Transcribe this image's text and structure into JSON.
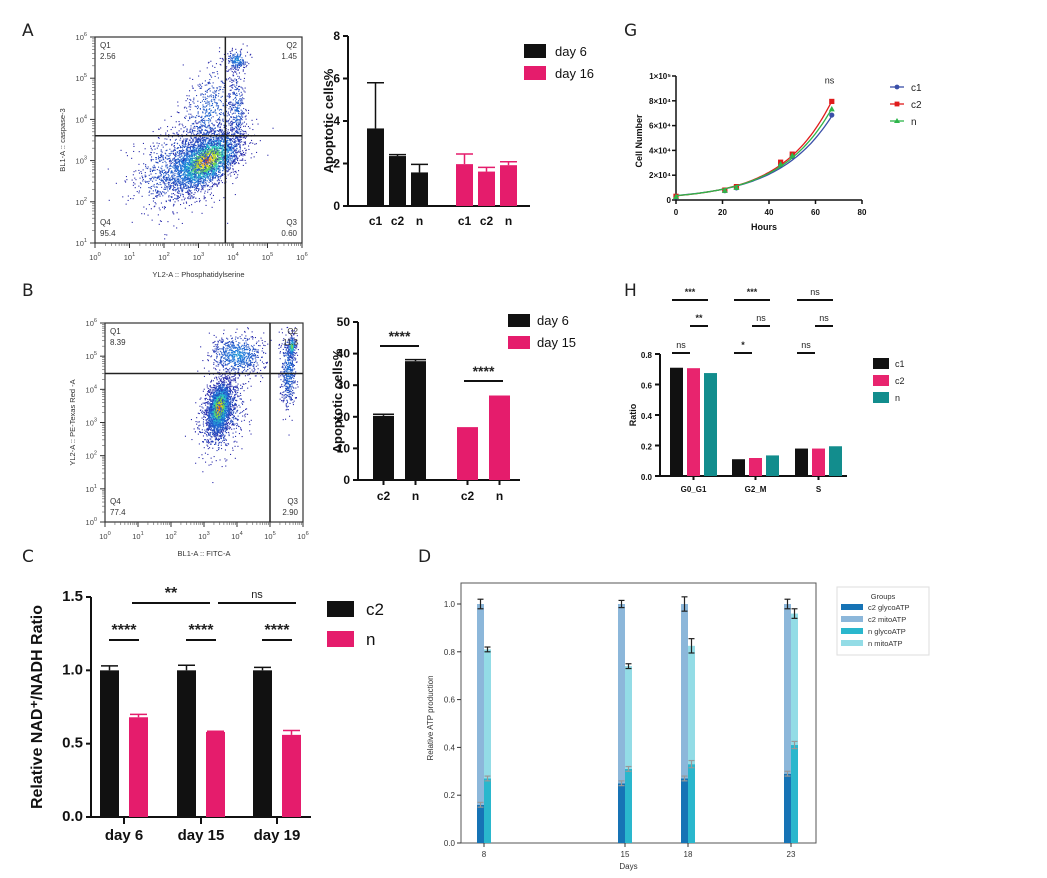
{
  "panel_labels": {
    "A": "A",
    "B": "B",
    "C": "C",
    "D": "D",
    "G": "G",
    "H": "H"
  },
  "chart_data": [
    {
      "id": "A-flow",
      "type": "scatter",
      "subtype": "flow-cytometry-density",
      "xlabel": "YL2-A :: Phosphatidylserine",
      "ylabel": "BL1-A :: caspase-3",
      "xscale": "log",
      "yscale": "log",
      "xlim": [
        1,
        1000000
      ],
      "ylim": [
        10,
        1000000
      ],
      "xticks": [
        "10^0",
        "10^1",
        "10^2",
        "10^3",
        "10^4",
        "10^5",
        "10^6"
      ],
      "yticks": [
        "10^1",
        "10^2",
        "10^3",
        "10^4",
        "10^5",
        "10^6"
      ],
      "gate": {
        "x": 6000,
        "y": 4000
      },
      "quadrants": [
        {
          "name": "Q1",
          "value": "2.56"
        },
        {
          "name": "Q2",
          "value": "1.45"
        },
        {
          "name": "Q3",
          "value": "0.60"
        },
        {
          "name": "Q4",
          "value": "95.4"
        }
      ]
    },
    {
      "id": "A-bar",
      "type": "bar",
      "ylabel": "Apoptotic cells%",
      "ylim": [
        0,
        8
      ],
      "yticks": [
        0,
        2,
        4,
        6,
        8
      ],
      "groups": [
        {
          "name": "day 6",
          "color": "#111111",
          "categories": [
            "c1",
            "c2",
            "n"
          ],
          "values": [
            3.65,
            2.35,
            1.58
          ],
          "errors": [
            2.15,
            0.07,
            0.38
          ]
        },
        {
          "name": "day 16",
          "color": "#e51c6c",
          "categories": [
            "c1",
            "c2",
            "n"
          ],
          "values": [
            1.97,
            1.62,
            1.92
          ],
          "errors": [
            0.48,
            0.2,
            0.16
          ]
        }
      ],
      "legend": [
        "day 6",
        "day 16"
      ]
    },
    {
      "id": "G",
      "type": "line",
      "xlabel": "Hours",
      "ylabel": "Cell Number",
      "xlim": [
        0,
        80
      ],
      "ylim": [
        0,
        100000
      ],
      "xticks": [
        0,
        20,
        40,
        60,
        80
      ],
      "yticks": [
        "0",
        "2×10⁴",
        "4×10⁴",
        "6×10⁴",
        "8×10⁴",
        "1×10⁵"
      ],
      "ytick_values": [
        0,
        20000,
        40000,
        60000,
        80000,
        100000
      ],
      "annotation": "ns",
      "series": [
        {
          "name": "c1",
          "color": "#3a4fa8",
          "marker": "circle",
          "x": [
            0,
            21,
            26,
            45,
            50,
            67
          ],
          "y": [
            2500,
            7500,
            9800,
            28000,
            35000,
            68500
          ]
        },
        {
          "name": "c2",
          "color": "#e01b1b",
          "marker": "square",
          "x": [
            0,
            21,
            26,
            45,
            50,
            67
          ],
          "y": [
            3000,
            8000,
            10800,
            30500,
            37000,
            79500
          ]
        },
        {
          "name": "n",
          "color": "#2eb54a",
          "marker": "triangle",
          "x": [
            0,
            21,
            26,
            45,
            50,
            67
          ],
          "y": [
            2800,
            7800,
            10200,
            29000,
            36000,
            73500
          ]
        }
      ],
      "fit": {
        "c1": [
          3600,
          0.0438
        ],
        "c2": [
          3400,
          0.0471
        ],
        "n": [
          3500,
          0.0455
        ]
      }
    },
    {
      "id": "B-flow",
      "type": "scatter",
      "subtype": "flow-cytometry-density",
      "xlabel": "BL1-A :: FITC-A",
      "ylabel": "YL2-A :: PE-Texas Red -A",
      "xscale": "log",
      "yscale": "log",
      "xlim": [
        1,
        1000000
      ],
      "ylim": [
        1,
        1000000
      ],
      "xticks": [
        "10^0",
        "10^1",
        "10^2",
        "10^3",
        "10^4",
        "10^5",
        "10^6"
      ],
      "yticks": [
        "10^0",
        "10^1",
        "10^2",
        "10^3",
        "10^4",
        "10^5",
        "10^6"
      ],
      "gate": {
        "x": 100000,
        "y": 30000
      },
      "quadrants": [
        {
          "name": "Q1",
          "value": "8.39"
        },
        {
          "name": "Q2",
          "value": "11.3"
        },
        {
          "name": "Q3",
          "value": "2.90"
        },
        {
          "name": "Q4",
          "value": "77.4"
        }
      ]
    },
    {
      "id": "B-bar",
      "type": "bar",
      "ylabel": "Apoptotic cells%",
      "ylim": [
        0,
        50
      ],
      "yticks": [
        0,
        10,
        20,
        30,
        40,
        50
      ],
      "groups": [
        {
          "name": "day 6",
          "color": "#111111",
          "categories": [
            "c2",
            "n"
          ],
          "values": [
            20.3,
            37.6
          ],
          "errors": [
            0.5,
            0.5
          ]
        },
        {
          "name": "day 15",
          "color": "#e51c6c",
          "categories": [
            "c2",
            "n"
          ],
          "values": [
            16.4,
            26.4
          ],
          "errors": [
            0.1,
            0.1
          ]
        }
      ],
      "significance": [
        "****",
        "****"
      ],
      "legend": [
        "day 6",
        "day 15"
      ]
    },
    {
      "id": "H",
      "type": "bar",
      "ylabel": "Ratio",
      "ylim": [
        0,
        0.8
      ],
      "yticks": [
        "0.0",
        "0.2",
        "0.4",
        "0.6",
        "0.8"
      ],
      "categories": [
        "G0_G1",
        "G2_M",
        "S"
      ],
      "series": [
        {
          "name": "c1",
          "color": "#111111",
          "values": [
            0.71,
            0.11,
            0.18
          ]
        },
        {
          "name": "c2",
          "color": "#e8246e",
          "values": [
            0.707,
            0.118,
            0.18
          ]
        },
        {
          "name": "n",
          "color": "#128d8d",
          "values": [
            0.675,
            0.135,
            0.195
          ]
        }
      ],
      "significance": {
        "G0_G1": [
          "***",
          "**",
          "ns"
        ],
        "G2_M": [
          "***",
          "ns",
          "*"
        ],
        "S": [
          "ns",
          "ns",
          "ns"
        ]
      },
      "legend": [
        "c1",
        "c2",
        "n"
      ]
    },
    {
      "id": "C",
      "type": "bar",
      "ylabel": "Relative NAD⁺/NADH Ratio",
      "ylim": [
        0,
        1.5
      ],
      "yticks": [
        "0.0",
        "0.5",
        "1.0",
        "1.5"
      ],
      "categories": [
        "day 6",
        "day 15",
        "day 19"
      ],
      "series": [
        {
          "name": "c2",
          "color": "#111111",
          "values": [
            1.0,
            1.0,
            1.0
          ],
          "errors": [
            0.03,
            0.035,
            0.02
          ]
        },
        {
          "name": "n",
          "color": "#e51c6c",
          "values": [
            0.68,
            0.58,
            0.56
          ],
          "errors": [
            0.02,
            0.005,
            0.03
          ]
        }
      ],
      "significance": {
        "within": [
          "****",
          "****",
          "****"
        ],
        "between": [
          "**",
          "ns"
        ]
      },
      "legend": [
        "c2",
        "n"
      ]
    },
    {
      "id": "D",
      "type": "bar",
      "subtype": "stacked",
      "xlabel": "Days",
      "ylabel": "Relative ATP production",
      "ylim": [
        0,
        1.08
      ],
      "yticks": [
        "0.0",
        "0.2",
        "0.4",
        "0.6",
        "0.8",
        "1.0"
      ],
      "categories": [
        "8",
        "15",
        "18",
        "23"
      ],
      "x": [
        8,
        15,
        18,
        23
      ],
      "legend_title": "Groups",
      "series": [
        {
          "name": "c2 glycoATP",
          "color": "#1673b5",
          "values": [
            0.16,
            0.25,
            0.27,
            0.29
          ],
          "errors": [
            0.01,
            0.01,
            0.01,
            0.01
          ]
        },
        {
          "name": "c2 mitoATP",
          "color": "#8cb7da",
          "values": [
            0.84,
            0.75,
            0.73,
            0.71
          ],
          "errors": [
            0.02,
            0.015,
            0.03,
            0.02
          ]
        },
        {
          "name": "n glycoATP",
          "color": "#2ab7cd",
          "values": [
            0.27,
            0.31,
            0.33,
            0.41
          ],
          "errors": [
            0.01,
            0.01,
            0.015,
            0.015
          ]
        },
        {
          "name": "n mitoATP",
          "color": "#93dce6",
          "values": [
            0.54,
            0.43,
            0.495,
            0.55
          ],
          "errors": [
            0.01,
            0.01,
            0.03,
            0.02
          ]
        }
      ],
      "totals": {
        "c2": [
          1.0,
          1.0,
          1.0,
          1.0
        ],
        "n": [
          0.81,
          0.74,
          0.825,
          0.96
        ]
      }
    }
  ]
}
